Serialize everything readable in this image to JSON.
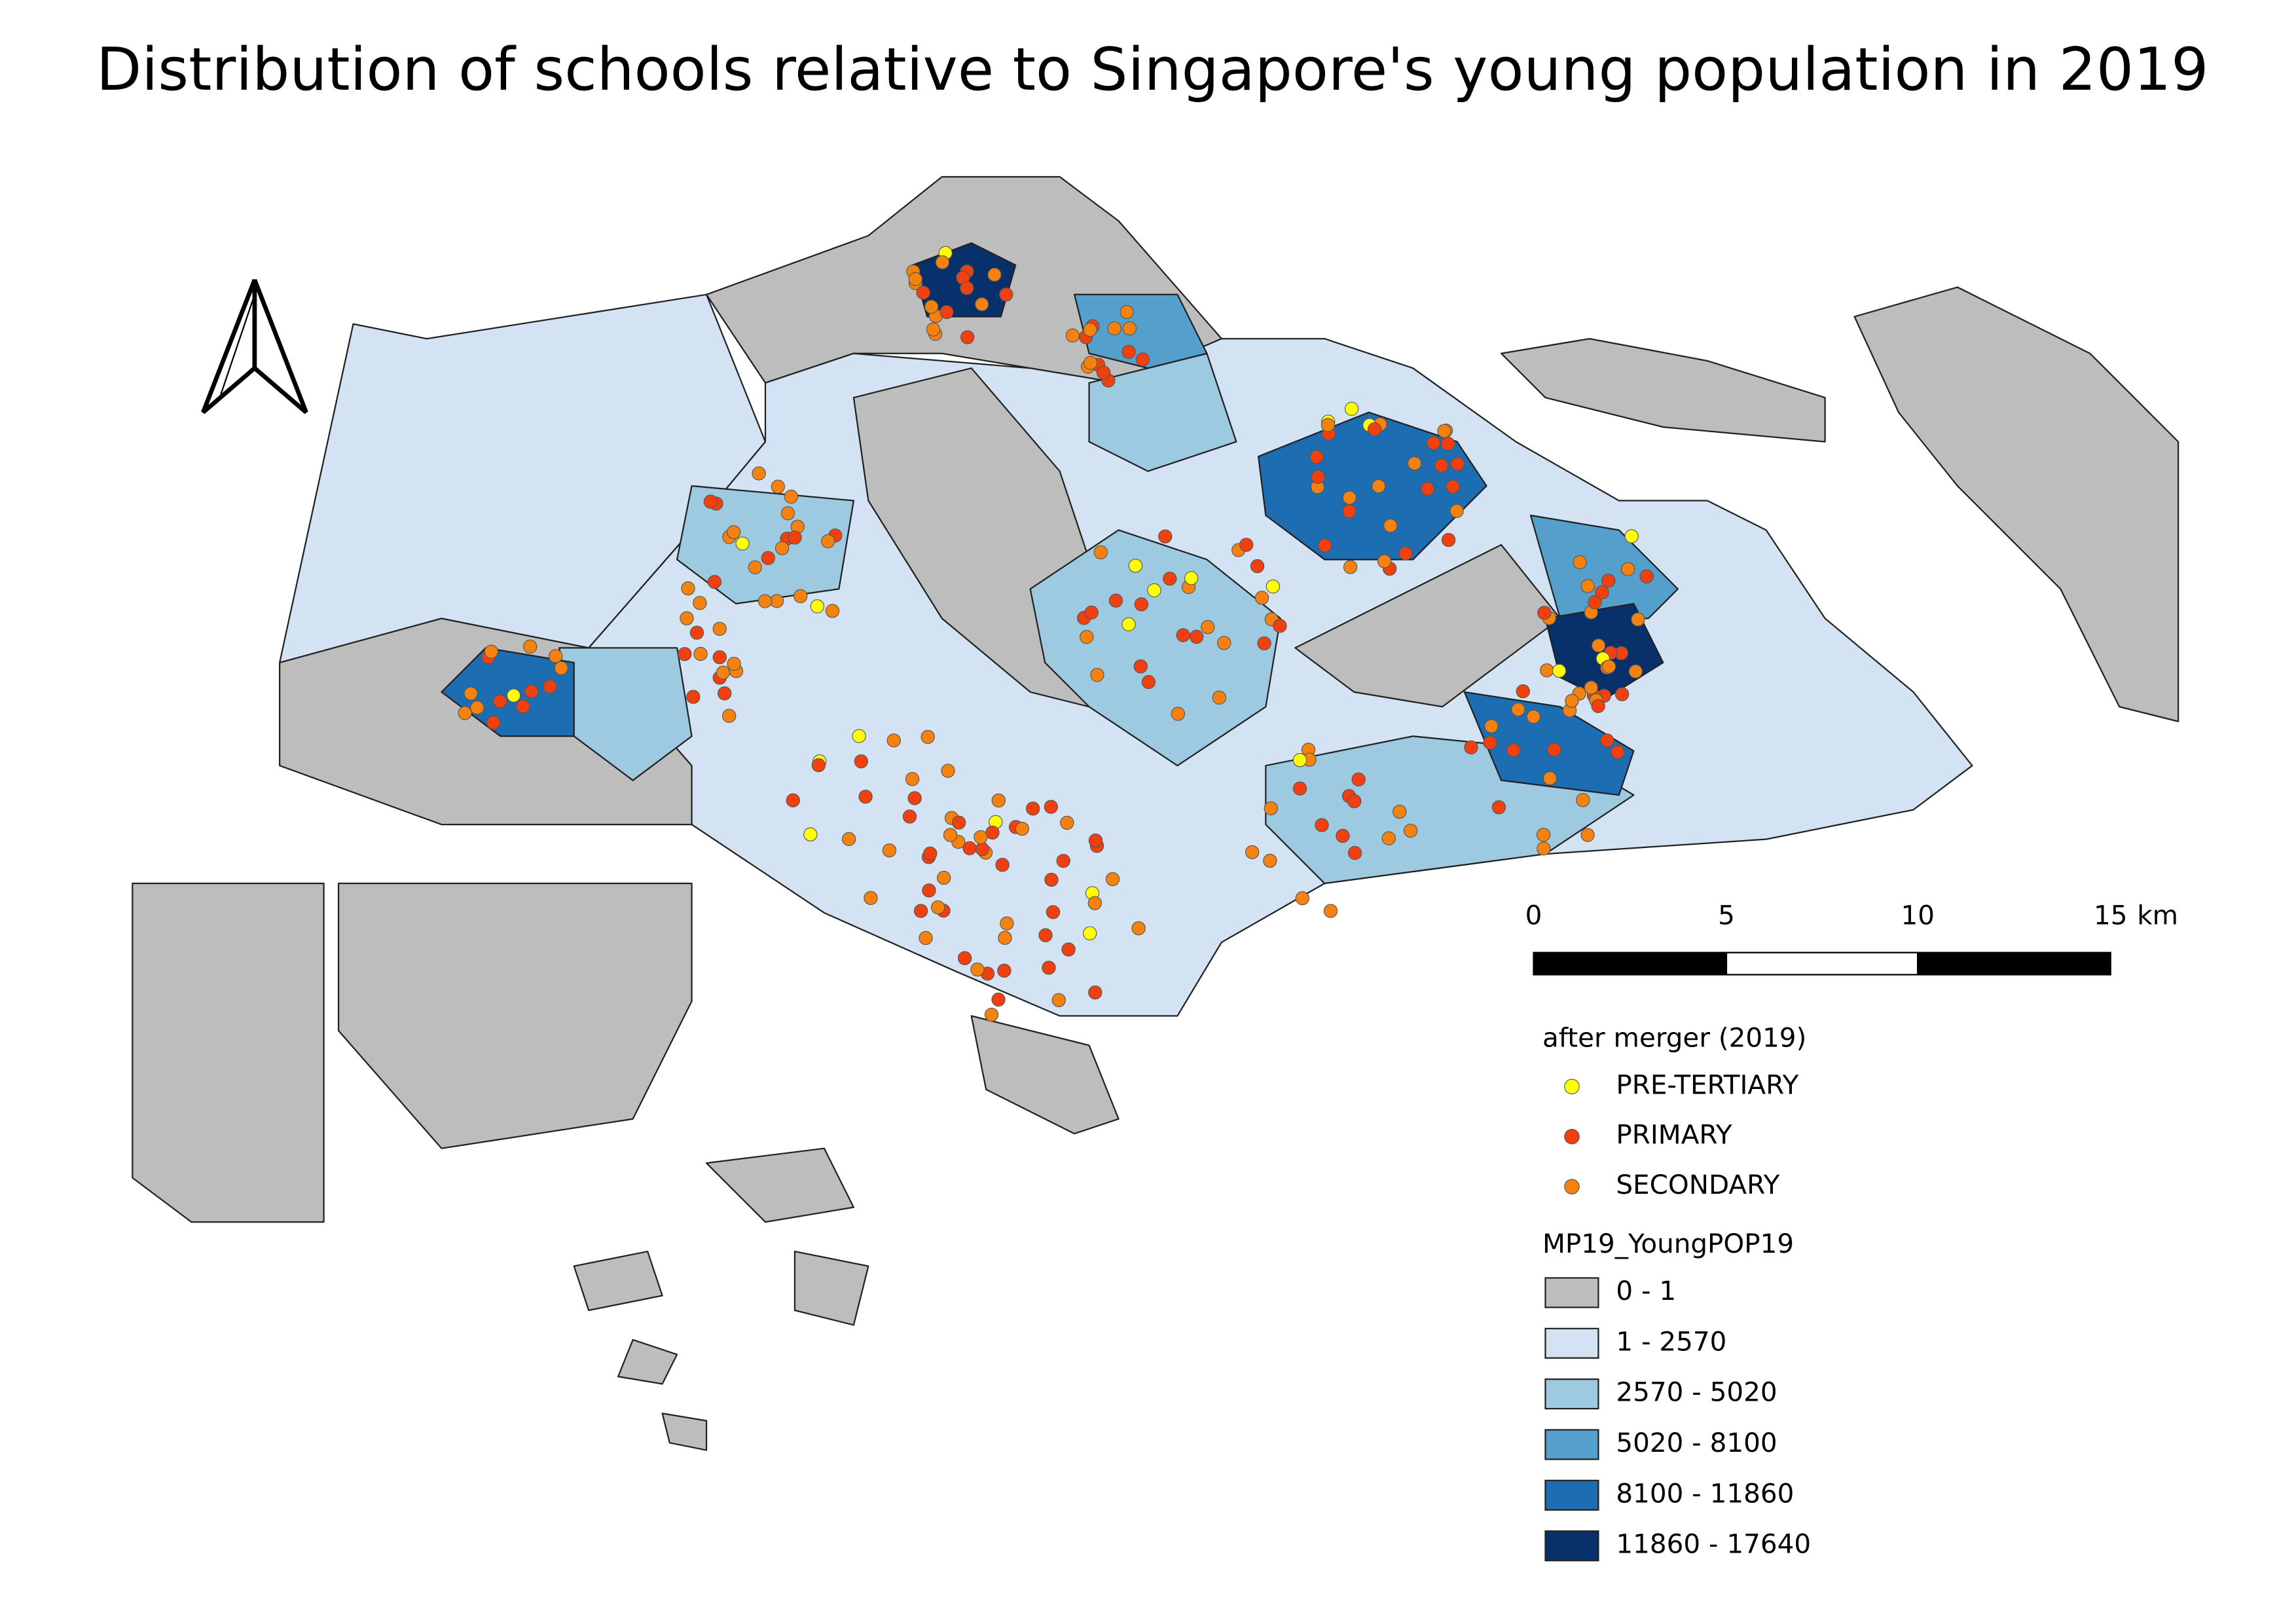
{
  "title": "Distribution of schools relative to Singapore's young population in 2019",
  "scale_bar": {
    "labels": [
      "0",
      "5",
      "10",
      "15"
    ],
    "unit": "km"
  },
  "legend": {
    "points": {
      "title": "after merger (2019)",
      "items": [
        {
          "label": "PRE-TERTIARY",
          "color": "#ffff00"
        },
        {
          "label": "PRIMARY",
          "color": "#f0400f"
        },
        {
          "label": "SECONDARY",
          "color": "#f5820f"
        }
      ]
    },
    "fill": {
      "title": "MP19_YoungPOP19",
      "items": [
        {
          "label": "0 - 1",
          "color": "#bdbdbd"
        },
        {
          "label": "1 - 2570",
          "color": "#d3e3f3"
        },
        {
          "label": "2570 - 5020",
          "color": "#9ecae1"
        },
        {
          "label": "5020 - 8100",
          "color": "#559fcd"
        },
        {
          "label": "8100 - 11860",
          "color": "#1d6db3"
        },
        {
          "label": "11860 - 17640",
          "color": "#08306b"
        }
      ]
    }
  }
}
